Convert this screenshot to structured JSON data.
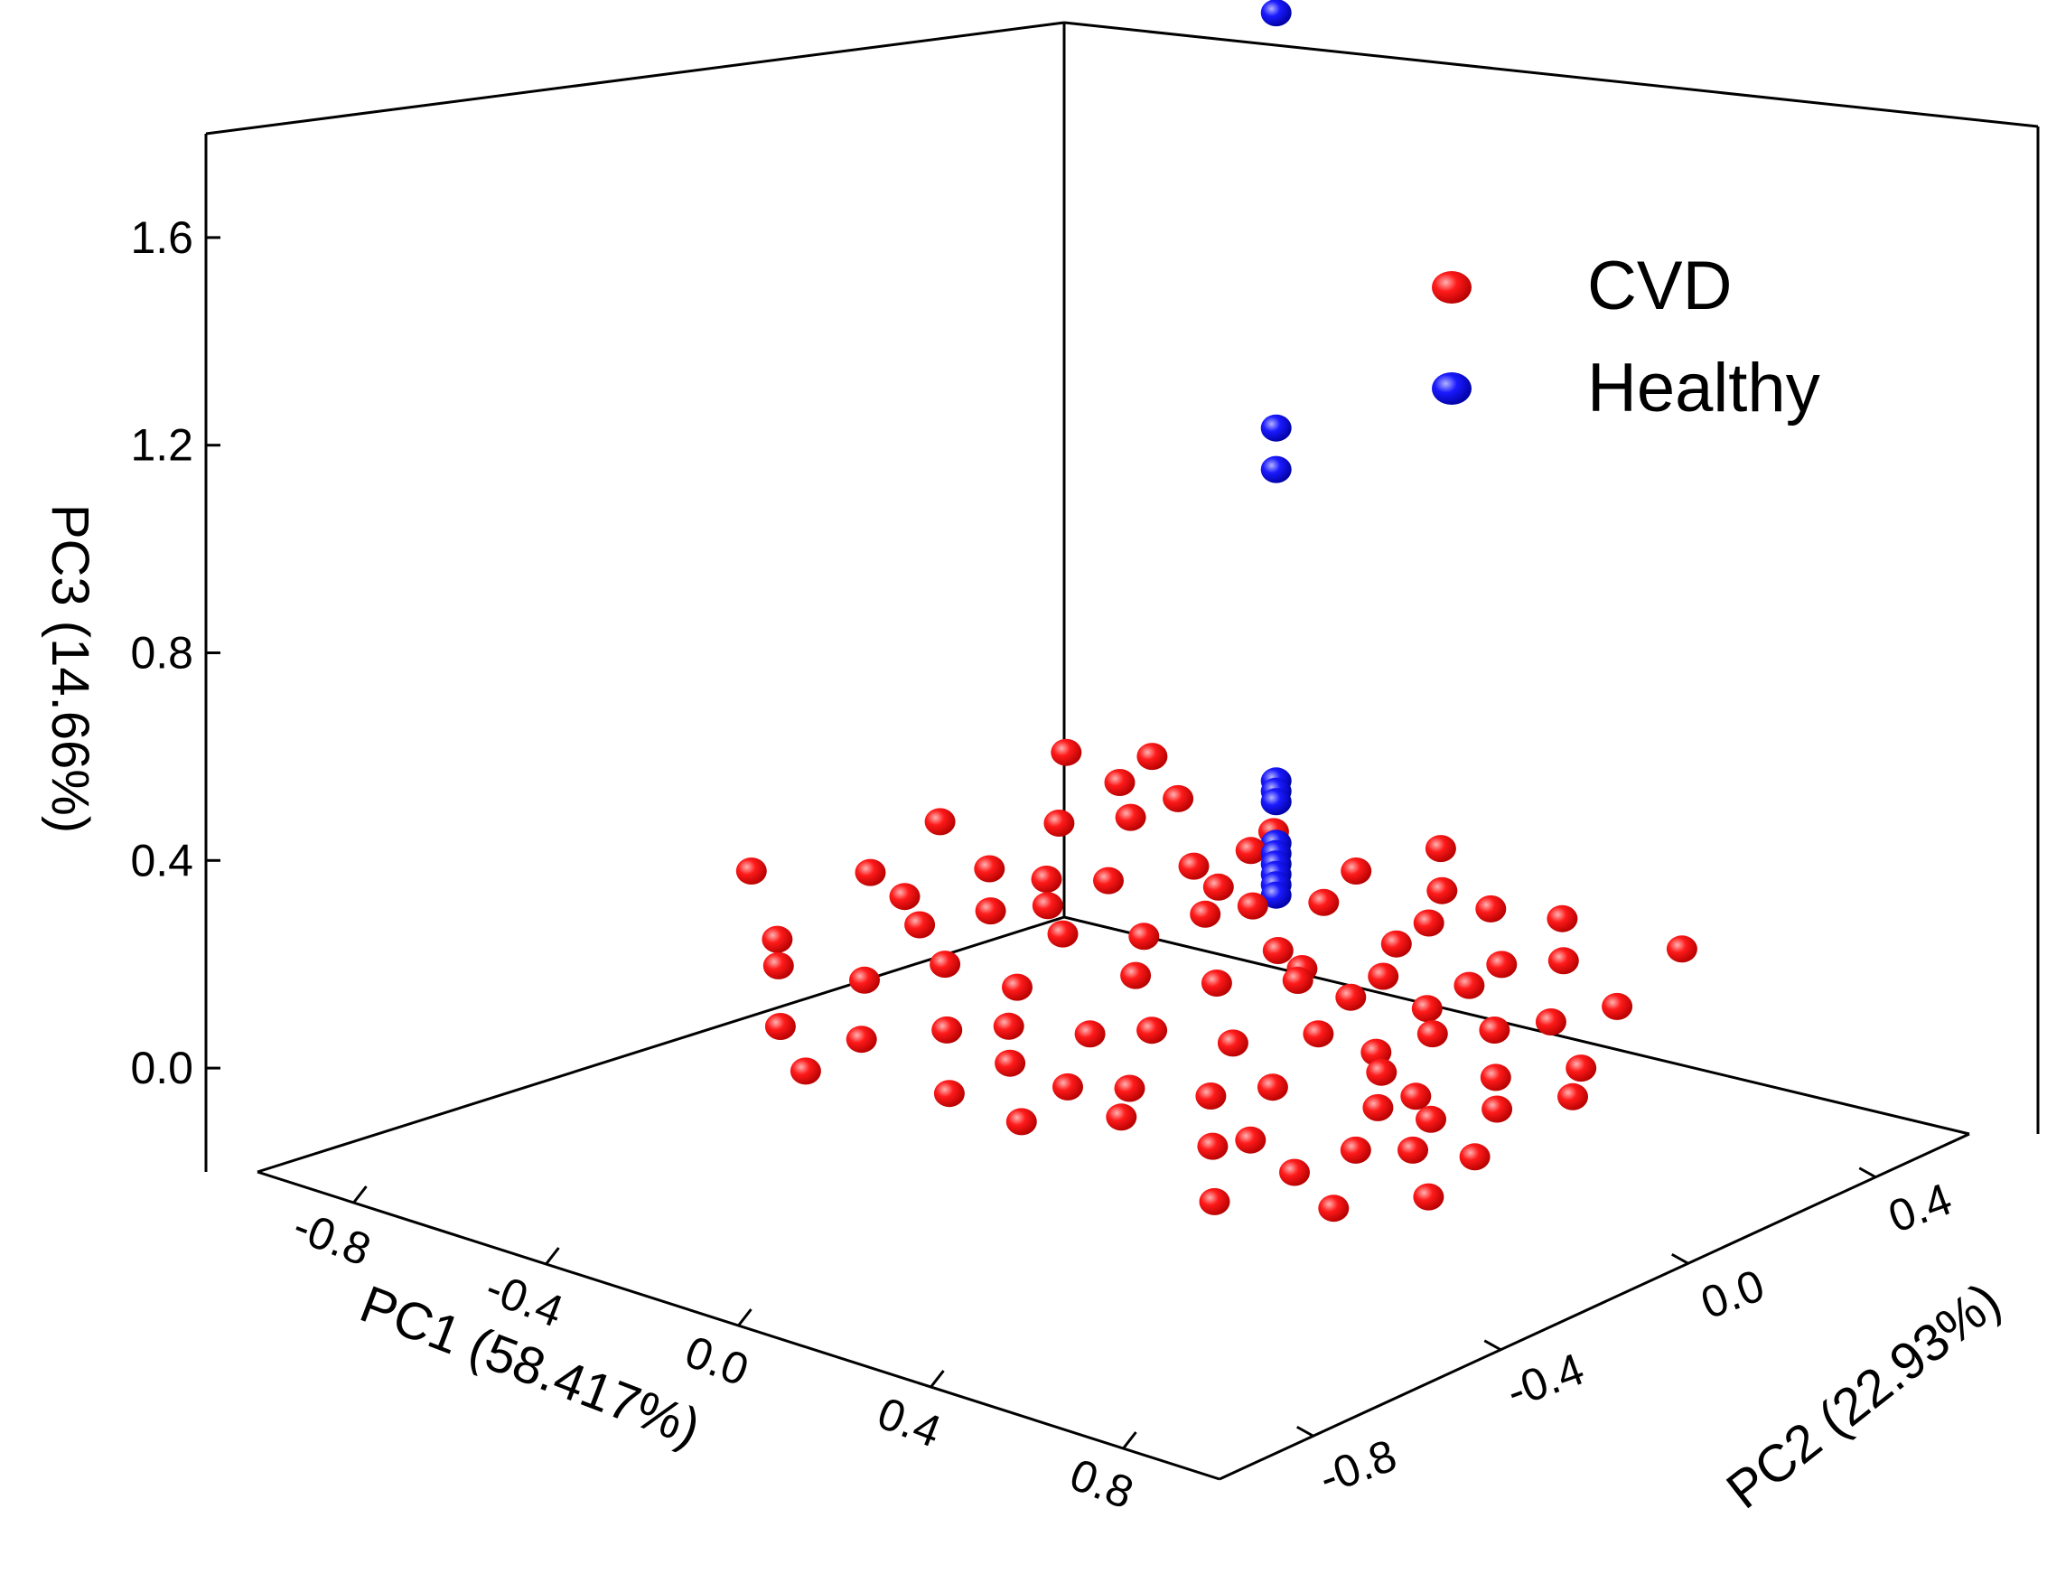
{
  "chart_data": {
    "type": "scatter3d",
    "title": "",
    "axes": {
      "x": {
        "label": "PC1 (58.417%)",
        "ticks": [
          -0.8,
          -0.4,
          0.0,
          0.4,
          0.8
        ],
        "tick_labels": [
          "-0.8",
          "-0.4",
          "0.0",
          "0.4",
          "0.8"
        ],
        "range": [
          -1.0,
          1.0
        ]
      },
      "y": {
        "label": "PC2 (22.93%)",
        "ticks": [
          -0.8,
          -0.4,
          0.0,
          0.4
        ],
        "tick_labels": [
          "-0.8",
          "-0.4",
          "0.0",
          "0.4"
        ],
        "range": [
          -1.0,
          0.6
        ]
      },
      "z": {
        "label": "PC3 (14.66%)",
        "ticks": [
          0.0,
          0.4,
          0.8,
          1.2,
          1.6
        ],
        "tick_labels": [
          "0.0",
          "0.4",
          "0.8",
          "1.2",
          "1.6"
        ],
        "range": [
          -0.2,
          1.8
        ]
      }
    },
    "legend": {
      "position": "top-right"
    },
    "series": [
      {
        "name": "CVD",
        "color": "#ff0000",
        "points": [
          [
            -0.6,
            0.3,
            0.05
          ],
          [
            -0.55,
            0.1,
            0.06
          ],
          [
            -0.5,
            -0.1,
            0.05
          ],
          [
            -0.45,
            0.4,
            0.1
          ],
          [
            -0.4,
            0.2,
            0.04
          ],
          [
            -0.35,
            -0.2,
            0.06
          ],
          [
            -0.3,
            0.0,
            0.05
          ],
          [
            -0.25,
            0.35,
            0.08
          ],
          [
            -0.2,
            -0.35,
            0.04
          ],
          [
            -0.15,
            0.15,
            0.07
          ],
          [
            -0.1,
            -0.05,
            0.05
          ],
          [
            -0.05,
            0.3,
            0.06
          ],
          [
            0.0,
            -0.25,
            0.05
          ],
          [
            0.05,
            0.1,
            0.08
          ],
          [
            0.1,
            -0.4,
            0.04
          ],
          [
            0.15,
            0.25,
            0.06
          ],
          [
            0.2,
            -0.15,
            0.05
          ],
          [
            0.25,
            0.05,
            0.07
          ],
          [
            0.3,
            -0.3,
            0.04
          ],
          [
            0.35,
            0.2,
            0.06
          ],
          [
            0.4,
            -0.05,
            0.05
          ],
          [
            0.45,
            -0.45,
            0.05
          ],
          [
            0.5,
            0.1,
            0.06
          ],
          [
            0.55,
            -0.2,
            0.05
          ],
          [
            0.6,
            0.0,
            0.04
          ],
          [
            0.65,
            -0.35,
            0.06
          ],
          [
            0.7,
            -0.1,
            0.05
          ],
          [
            0.75,
            -0.5,
            0.04
          ],
          [
            0.8,
            -0.25,
            0.05
          ],
          [
            -0.7,
            0.0,
            0.05
          ],
          [
            -0.65,
            -0.25,
            0.04
          ],
          [
            -0.62,
            0.45,
            0.06
          ],
          [
            -0.5,
            0.35,
            0.07
          ],
          [
            -0.42,
            -0.3,
            0.05
          ],
          [
            -0.38,
            0.05,
            0.06
          ],
          [
            -0.28,
            -0.45,
            0.04
          ],
          [
            -0.22,
            0.25,
            0.06
          ],
          [
            -0.12,
            -0.3,
            0.05
          ],
          [
            -0.08,
            0.4,
            0.07
          ],
          [
            0.02,
            0.0,
            0.05
          ],
          [
            0.08,
            -0.2,
            0.06
          ],
          [
            0.12,
            0.35,
            0.05
          ],
          [
            0.18,
            -0.35,
            0.04
          ],
          [
            0.22,
            0.15,
            0.06
          ],
          [
            0.28,
            -0.05,
            0.05
          ],
          [
            0.32,
            0.3,
            0.05
          ],
          [
            0.38,
            -0.25,
            0.06
          ],
          [
            0.42,
            0.05,
            0.05
          ],
          [
            0.48,
            -0.4,
            0.05
          ],
          [
            0.52,
            0.2,
            0.04
          ],
          [
            0.58,
            -0.15,
            0.06
          ],
          [
            0.62,
            -0.45,
            0.05
          ],
          [
            0.68,
            0.1,
            0.04
          ],
          [
            0.72,
            -0.3,
            0.06
          ],
          [
            -0.75,
            0.2,
            0.05
          ],
          [
            -0.58,
            -0.05,
            0.06
          ],
          [
            -0.48,
            0.15,
            0.04
          ],
          [
            -0.32,
            0.3,
            0.05
          ],
          [
            -0.18,
            0.05,
            0.06
          ],
          [
            -0.02,
            -0.4,
            0.05
          ],
          [
            0.14,
            0.05,
            0.07
          ],
          [
            0.26,
            -0.45,
            0.05
          ],
          [
            0.36,
            0.1,
            0.06
          ],
          [
            0.46,
            -0.1,
            0.05
          ],
          [
            0.56,
            0.3,
            0.04
          ],
          [
            0.66,
            -0.2,
            0.06
          ],
          [
            0.76,
            0.0,
            0.05
          ],
          [
            -0.85,
            -0.1,
            0.05
          ],
          [
            -0.55,
            -0.35,
            0.06
          ],
          [
            -0.3,
            0.45,
            0.06
          ],
          [
            0.05,
            0.45,
            0.05
          ],
          [
            0.3,
            0.45,
            0.07
          ],
          [
            -0.4,
            -0.5,
            0.05
          ],
          [
            0.0,
            -0.55,
            0.06
          ],
          [
            0.2,
            0.4,
            0.08
          ],
          [
            -0.1,
            0.2,
            0.08
          ],
          [
            0.1,
            0.1,
            0.06
          ],
          [
            -0.2,
            -0.2,
            0.06
          ],
          [
            0.4,
            0.35,
            0.06
          ],
          [
            -0.45,
            0.0,
            0.05
          ],
          [
            -0.78,
            0.5,
            0.05
          ],
          [
            0.85,
            -0.4,
            0.05
          ],
          [
            0.6,
            -0.6,
            0.05
          ],
          [
            -0.65,
            0.55,
            0.06
          ],
          [
            -0.25,
            -0.6,
            0.05
          ],
          [
            0.15,
            -0.55,
            0.05
          ],
          [
            0.5,
            0.5,
            0.05
          ],
          [
            -0.05,
            0.55,
            0.06
          ]
        ]
      },
      {
        "name": "Healthy",
        "color": "#0000ff",
        "points": [
          [
            -0.1,
            0.25,
            1.78
          ],
          [
            -0.1,
            0.25,
            0.98
          ],
          [
            -0.1,
            0.25,
            0.9
          ],
          [
            -0.1,
            0.25,
            0.3
          ],
          [
            -0.1,
            0.25,
            0.28
          ],
          [
            -0.1,
            0.25,
            0.26
          ],
          [
            -0.1,
            0.25,
            0.18
          ],
          [
            -0.1,
            0.25,
            0.16
          ],
          [
            -0.1,
            0.25,
            0.14
          ],
          [
            -0.1,
            0.25,
            0.12
          ],
          [
            -0.1,
            0.25,
            0.1
          ],
          [
            -0.1,
            0.25,
            0.08
          ]
        ]
      }
    ]
  }
}
